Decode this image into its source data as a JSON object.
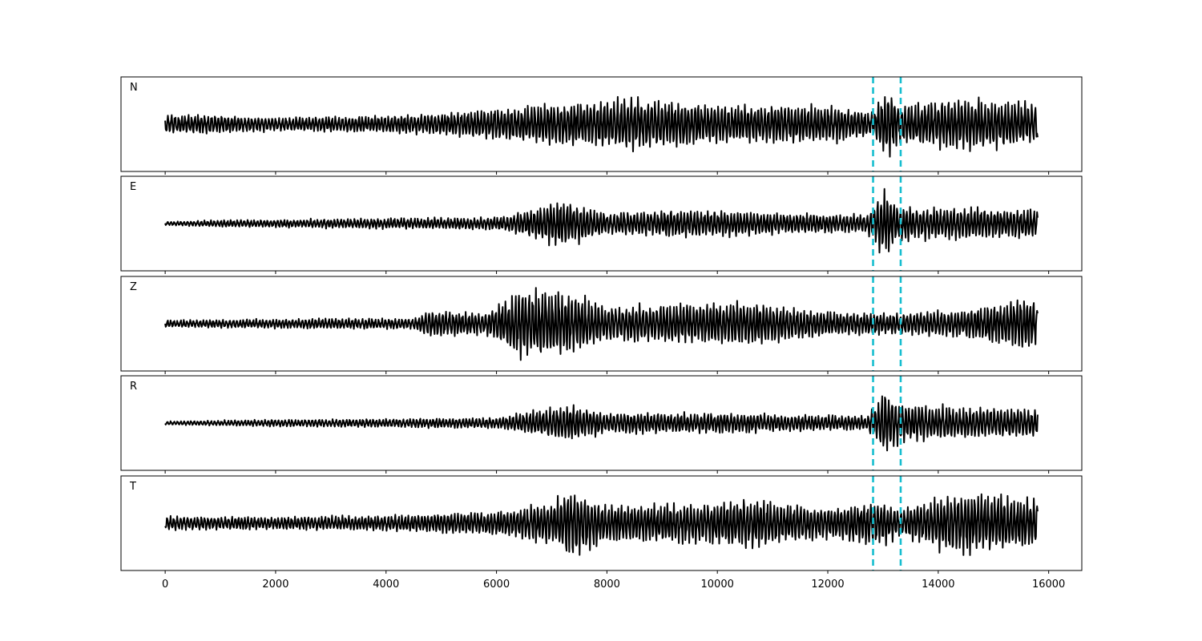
{
  "chart_data": {
    "type": "line",
    "title": "",
    "xlabel": "",
    "ylabel": "",
    "xlim": [
      -800,
      16600
    ],
    "xticks": [
      0,
      2000,
      4000,
      6000,
      8000,
      10000,
      12000,
      14000,
      16000
    ],
    "xtick_labels": [
      "0",
      "2000",
      "4000",
      "6000",
      "8000",
      "10000",
      "12000",
      "14000",
      "16000"
    ],
    "x_range": [
      0,
      15800
    ],
    "grid": false,
    "yticks_shown": false,
    "shared_x_axis": true,
    "trace_color": "#000000",
    "marker_color": "#17becf",
    "vertical_markers": [
      12820,
      13320
    ],
    "panels": [
      {
        "label": "N",
        "envelope": [
          [
            0,
            0.3
          ],
          [
            2000,
            0.2
          ],
          [
            4000,
            0.25
          ],
          [
            5000,
            0.3
          ],
          [
            6000,
            0.45
          ],
          [
            7000,
            0.6
          ],
          [
            8500,
            0.75
          ],
          [
            10000,
            0.55
          ],
          [
            12000,
            0.55
          ],
          [
            12800,
            0.35
          ],
          [
            13100,
            1.0
          ],
          [
            13300,
            0.55
          ],
          [
            14500,
            0.75
          ],
          [
            15800,
            0.6
          ]
        ]
      },
      {
        "label": "E",
        "envelope": [
          [
            0,
            0.05
          ],
          [
            1000,
            0.1
          ],
          [
            4000,
            0.15
          ],
          [
            6000,
            0.18
          ],
          [
            6500,
            0.35
          ],
          [
            7200,
            0.7
          ],
          [
            8000,
            0.3
          ],
          [
            9500,
            0.4
          ],
          [
            11000,
            0.3
          ],
          [
            12700,
            0.25
          ],
          [
            13000,
            1.0
          ],
          [
            13300,
            0.5
          ],
          [
            14000,
            0.45
          ],
          [
            15800,
            0.4
          ]
        ]
      },
      {
        "label": "Z",
        "envelope": [
          [
            0,
            0.1
          ],
          [
            3000,
            0.15
          ],
          [
            4500,
            0.15
          ],
          [
            4800,
            0.4
          ],
          [
            5800,
            0.3
          ],
          [
            6400,
            1.0
          ],
          [
            7200,
            0.95
          ],
          [
            8000,
            0.5
          ],
          [
            9000,
            0.55
          ],
          [
            10500,
            0.65
          ],
          [
            12000,
            0.35
          ],
          [
            13000,
            0.3
          ],
          [
            14500,
            0.4
          ],
          [
            15700,
            0.8
          ],
          [
            15800,
            0.5
          ]
        ]
      },
      {
        "label": "R",
        "envelope": [
          [
            0,
            0.05
          ],
          [
            2000,
            0.1
          ],
          [
            4000,
            0.12
          ],
          [
            6000,
            0.15
          ],
          [
            6500,
            0.3
          ],
          [
            7300,
            0.5
          ],
          [
            8000,
            0.3
          ],
          [
            10000,
            0.28
          ],
          [
            12700,
            0.2
          ],
          [
            12900,
            0.6
          ],
          [
            13050,
            1.0
          ],
          [
            13300,
            0.55
          ],
          [
            14500,
            0.45
          ],
          [
            15800,
            0.4
          ]
        ]
      },
      {
        "label": "T",
        "envelope": [
          [
            0,
            0.2
          ],
          [
            2000,
            0.18
          ],
          [
            4000,
            0.22
          ],
          [
            6000,
            0.35
          ],
          [
            7000,
            0.6
          ],
          [
            7300,
            1.0
          ],
          [
            8000,
            0.55
          ],
          [
            9500,
            0.55
          ],
          [
            10500,
            0.7
          ],
          [
            12000,
            0.45
          ],
          [
            13000,
            0.65
          ],
          [
            13300,
            0.35
          ],
          [
            14200,
            0.9
          ],
          [
            15800,
            0.7
          ]
        ]
      }
    ]
  }
}
